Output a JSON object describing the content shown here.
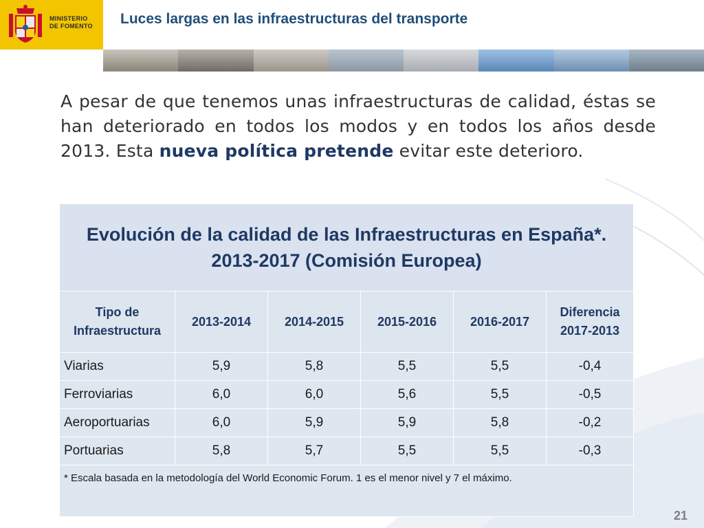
{
  "header": {
    "ministry_line1": "MINISTERIO",
    "ministry_line2": "DE FOMENTO",
    "title": "Luces largas en las infraestructuras del transporte"
  },
  "intro": {
    "text_before": "A pesar de que tenemos unas infraestructuras de calidad, éstas se han deteriorado en todos los modos y en todos los años desde 2013. Esta ",
    "bold": "nueva política pretende",
    "text_after": " evitar este deterioro."
  },
  "table": {
    "title": "Evolución de la calidad de las Infraestructuras en España*. 2013-2017 (Comisión Europea)",
    "headers": [
      "Tipo de Infraestructura",
      "2013-2014",
      "2014-2015",
      "2015-2016",
      "2016-2017",
      "Diferencia 2017-2013"
    ],
    "rows": [
      [
        "Viarias",
        "5,9",
        "5,8",
        "5,5",
        "5,5",
        "-0,4"
      ],
      [
        "Ferroviarias",
        "6,0",
        "6,0",
        "5,6",
        "5,5",
        "-0,5"
      ],
      [
        "Aeroportuarias",
        "6,0",
        "5,9",
        "5,9",
        "5,8",
        "-0,2"
      ],
      [
        "Portuarias",
        "5,8",
        "5,7",
        "5,5",
        "5,5",
        "-0,3"
      ]
    ],
    "note": "* Escala basada en la metodología del World Economic Forum. 1 es el menor nivel y 7 el máximo."
  },
  "page_number": "21",
  "colors": {
    "logo_bg": "#f2c500",
    "title_blue": "#1f4e79",
    "table_bg": "#dee6f0",
    "heading_navy": "#1f3864"
  },
  "icons": [
    "coat-of-arms-icon"
  ]
}
